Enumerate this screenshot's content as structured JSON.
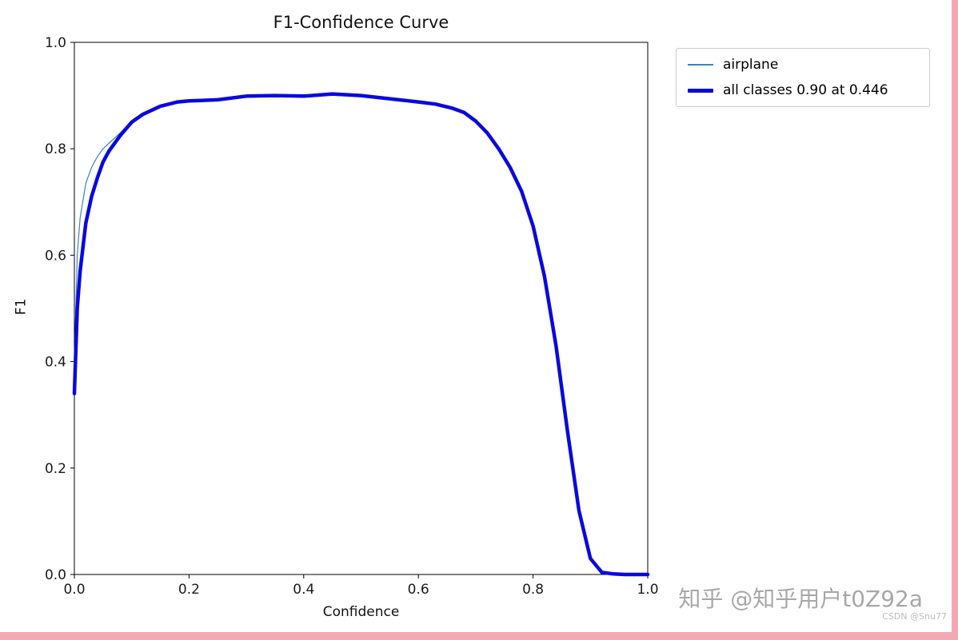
{
  "chart_data": {
    "type": "line",
    "title": "F1-Confidence Curve",
    "xlabel": "Confidence",
    "ylabel": "F1",
    "xlim": [
      0.0,
      1.0
    ],
    "ylim": [
      0.0,
      1.0
    ],
    "xticks": [
      "0.0",
      "0.2",
      "0.4",
      "0.6",
      "0.8",
      "1.0"
    ],
    "yticks": [
      "0.0",
      "0.2",
      "0.4",
      "0.6",
      "0.8",
      "1.0"
    ],
    "grid": false,
    "legend": {
      "position": "upper-right-outside",
      "entries": [
        "airplane",
        "all classes 0.90 at 0.446"
      ]
    },
    "best_f1": 0.9,
    "best_confidence": 0.446,
    "x": [
      0.0,
      0.005,
      0.01,
      0.02,
      0.03,
      0.04,
      0.05,
      0.06,
      0.08,
      0.1,
      0.12,
      0.15,
      0.18,
      0.2,
      0.25,
      0.3,
      0.35,
      0.4,
      0.45,
      0.5,
      0.55,
      0.6,
      0.63,
      0.66,
      0.68,
      0.7,
      0.72,
      0.74,
      0.76,
      0.78,
      0.8,
      0.82,
      0.84,
      0.86,
      0.88,
      0.9,
      0.92,
      0.94,
      0.96,
      1.0
    ],
    "series": [
      {
        "name": "airplane",
        "color": "#3d85c0",
        "width": 1.2,
        "y": [
          0.4,
          0.6,
          0.67,
          0.735,
          0.765,
          0.785,
          0.8,
          0.81,
          0.83,
          0.852,
          0.866,
          0.881,
          0.889,
          0.891,
          0.893,
          0.9,
          0.901,
          0.9,
          0.904,
          0.901,
          0.895,
          0.889,
          0.885,
          0.877,
          0.869,
          0.853,
          0.831,
          0.801,
          0.766,
          0.721,
          0.656,
          0.561,
          0.431,
          0.271,
          0.121,
          0.028,
          0.002,
          0.0,
          0.0,
          0.0
        ]
      },
      {
        "name": "all classes 0.90 at 0.446",
        "color": "#0909dd",
        "width": 4.5,
        "y": [
          0.34,
          0.5,
          0.57,
          0.66,
          0.71,
          0.745,
          0.775,
          0.795,
          0.825,
          0.85,
          0.865,
          0.88,
          0.888,
          0.89,
          0.892,
          0.899,
          0.9,
          0.899,
          0.903,
          0.9,
          0.894,
          0.888,
          0.884,
          0.876,
          0.868,
          0.852,
          0.83,
          0.8,
          0.765,
          0.72,
          0.655,
          0.56,
          0.43,
          0.27,
          0.12,
          0.03,
          0.004,
          0.001,
          0.0,
          0.0
        ]
      }
    ]
  },
  "watermarks": {
    "zhihu": "知乎 @知乎用户t0Z92a",
    "csdn": "CSDN @Snu77"
  },
  "colors": {
    "accent_border": "#f3a9b3",
    "all_classes_line": "#0909dd",
    "airplane_line": "#3d85c0"
  }
}
